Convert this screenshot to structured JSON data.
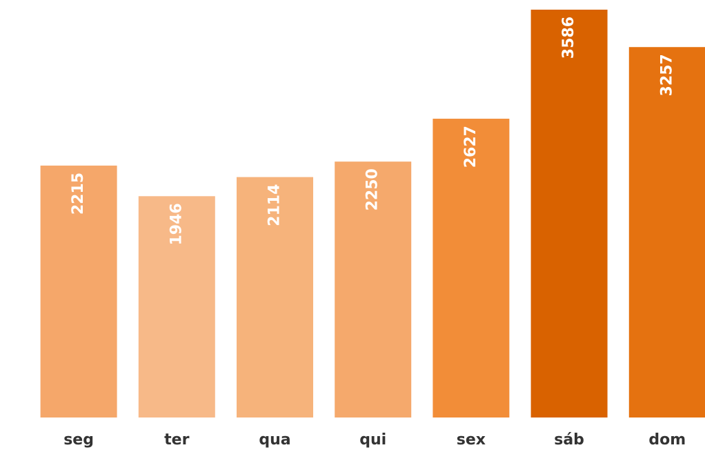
{
  "chart_data": {
    "type": "bar",
    "categories": [
      "seg",
      "ter",
      "qua",
      "qui",
      "sex",
      "sáb",
      "dom"
    ],
    "values": [
      2215,
      1946,
      2114,
      2250,
      2627,
      3586,
      3257
    ],
    "colors": [
      "#f5a76a",
      "#f7b988",
      "#f6b37b",
      "#f5a96c",
      "#f28d38",
      "#d96200",
      "#e57210"
    ]
  }
}
